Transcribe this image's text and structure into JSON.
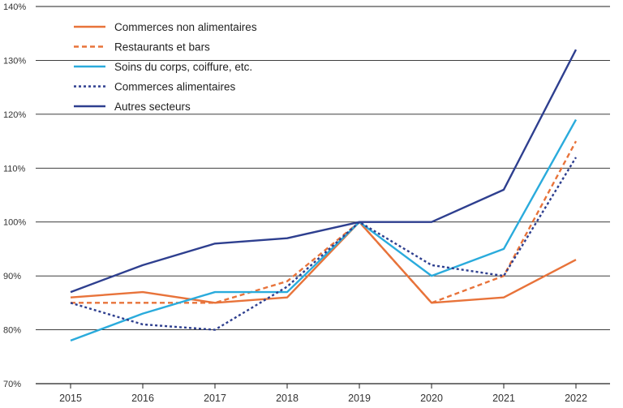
{
  "chart_data": {
    "type": "line",
    "title": "",
    "xlabel": "",
    "ylabel": "",
    "x": [
      2015,
      2016,
      2017,
      2018,
      2019,
      2020,
      2021,
      2022
    ],
    "x_tick_labels": [
      "2015",
      "2016",
      "2017",
      "2018",
      "2019",
      "2020",
      "2021",
      "2022"
    ],
    "ylim": [
      70,
      140
    ],
    "y_ticks": [
      70,
      80,
      90,
      100,
      110,
      120,
      130,
      140
    ],
    "y_tick_labels": [
      "70%",
      "80%",
      "90%",
      "100%",
      "110%",
      "120%",
      "130%",
      "140%"
    ],
    "grid": "horizontal",
    "legend_position": "top-left",
    "series": [
      {
        "name": "Commerces non alimentaires",
        "color": "#e8733a",
        "dash": "solid",
        "values": [
          86,
          87,
          85,
          86,
          100,
          85,
          86,
          93
        ]
      },
      {
        "name": "Restaurants et bars",
        "color": "#e8733a",
        "dash": "dashed",
        "values": [
          85,
          85,
          85,
          89,
          100,
          85,
          90,
          115
        ]
      },
      {
        "name": "Soins du corps, coiffure, etc.",
        "color": "#2aabdc",
        "dash": "solid",
        "values": [
          78,
          83,
          87,
          87,
          100,
          90,
          95,
          119
        ]
      },
      {
        "name": "Commerces alimentaires",
        "color": "#2e3f8f",
        "dash": "dotted",
        "values": [
          85,
          81,
          80,
          88,
          100,
          92,
          90,
          112
        ]
      },
      {
        "name": "Autres secteurs",
        "color": "#2e3f8f",
        "dash": "solid",
        "values": [
          87,
          92,
          96,
          97,
          100,
          100,
          106,
          132
        ]
      }
    ]
  }
}
